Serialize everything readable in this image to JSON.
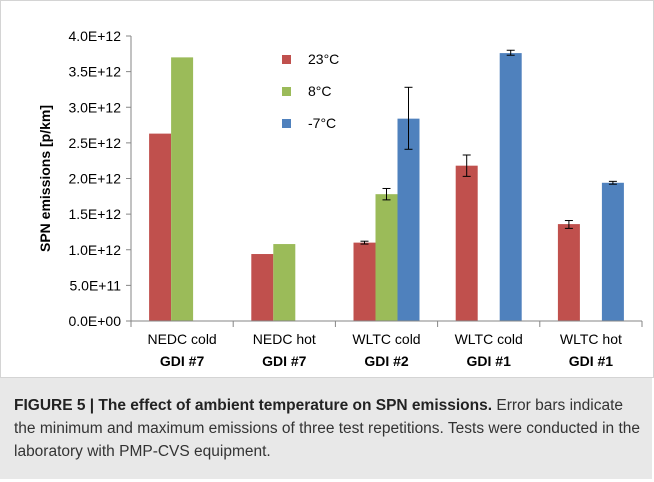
{
  "chart_data": {
    "type": "bar",
    "title": "",
    "xlabel": "",
    "ylabel": "SPN emissions  [p/km]",
    "ylim": [
      0,
      4000000000000.0
    ],
    "yticks": [
      {
        "value": 0,
        "label": "0.0E+00"
      },
      {
        "value": 500000000000.0,
        "label": "5.0E+11"
      },
      {
        "value": 1000000000000.0,
        "label": "1.0E+12"
      },
      {
        "value": 1500000000000.0,
        "label": "1.5E+12"
      },
      {
        "value": 2000000000000.0,
        "label": "2.0E+12"
      },
      {
        "value": 2500000000000.0,
        "label": "2.5E+12"
      },
      {
        "value": 3000000000000.0,
        "label": "3.0E+12"
      },
      {
        "value": 3500000000000.0,
        "label": "3.5E+12"
      },
      {
        "value": 4000000000000.0,
        "label": "4.0E+12"
      }
    ],
    "categories": [
      {
        "line1": "NEDC cold",
        "line2": "GDI #7"
      },
      {
        "line1": "NEDC hot",
        "line2": "GDI #7"
      },
      {
        "line1": "WLTC cold",
        "line2": "GDI #2"
      },
      {
        "line1": "WLTC cold",
        "line2": "GDI #1"
      },
      {
        "line1": "WLTC hot",
        "line2": "GDI #1"
      }
    ],
    "series": [
      {
        "name": "23°C",
        "color": "#c0504d",
        "values": [
          2630000000000.0,
          940000000000.0,
          1100000000000.0,
          2180000000000.0,
          1360000000000.0
        ],
        "err_low": [
          null,
          null,
          1080000000000.0,
          2030000000000.0,
          1300000000000.0
        ],
        "err_high": [
          null,
          null,
          1120000000000.0,
          2330000000000.0,
          1410000000000.0
        ]
      },
      {
        "name": "8°C",
        "color": "#9bbb59",
        "values": [
          3700000000000.0,
          1080000000000.0,
          1780000000000.0,
          null,
          null
        ],
        "err_low": [
          null,
          null,
          1700000000000.0,
          null,
          null
        ],
        "err_high": [
          null,
          null,
          1860000000000.0,
          null,
          null
        ]
      },
      {
        "name": "-7°C",
        "color": "#4f81bd",
        "values": [
          null,
          null,
          2840000000000.0,
          3760000000000.0,
          1940000000000.0
        ],
        "err_low": [
          null,
          null,
          2410000000000.0,
          3730000000000.0,
          1920000000000.0
        ],
        "err_high": [
          null,
          null,
          3280000000000.0,
          3800000000000.0,
          1960000000000.0
        ]
      }
    ],
    "legend_position": "top-center",
    "grid": false
  },
  "caption": {
    "title": "FIGURE 5 | The effect of ambient temperature on SPN emissions.",
    "body": " Error bars indicate the minimum and maximum emissions of three test repetitions. Tests were conducted in the laboratory with PMP-CVS equipment."
  }
}
